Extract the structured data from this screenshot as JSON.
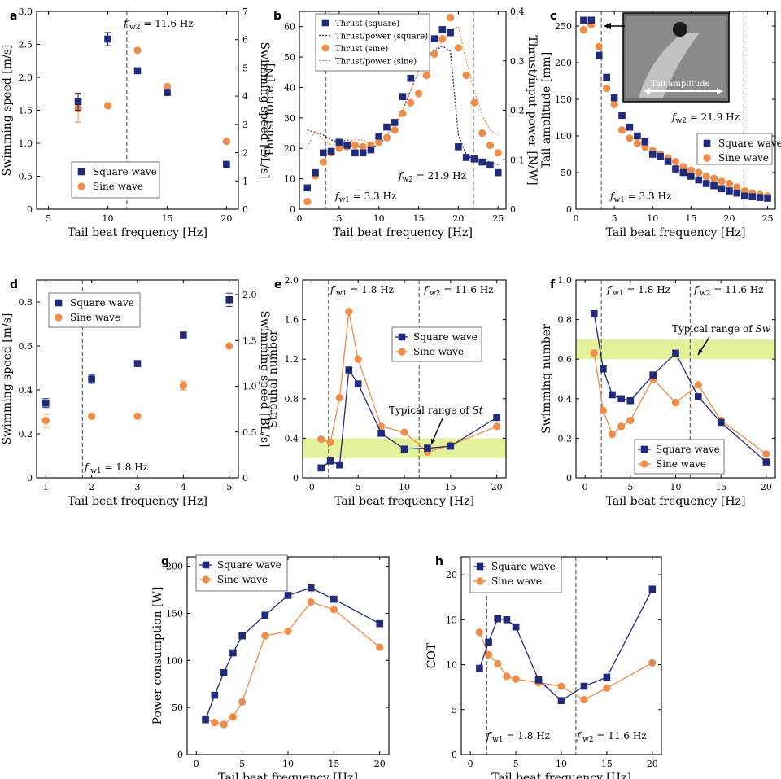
{
  "colors": {
    "square": "#1f2a7a",
    "sine": "#f08c4a",
    "band": "#e3f19a"
  },
  "legend": {
    "square": "Square wave",
    "sine": "Sine wave"
  },
  "photo": {
    "label": "Tail amplitude"
  },
  "chart_data": [
    {
      "id": "a",
      "type": "scatter",
      "panel_label": "a",
      "xlabel": "Tail beat frequency [Hz]",
      "ylabel": "Swimming speed [m/s]",
      "ylabel2": "Swimming speed [BL/s]",
      "xlim": [
        4,
        21
      ],
      "ylim": [
        0,
        3.0
      ],
      "xticks": [
        5,
        10,
        15,
        20
      ],
      "yticks": [
        0,
        0.5,
        1.0,
        1.5,
        2.0,
        2.5,
        3.0
      ],
      "yticklabels": [
        "0",
        "0.5",
        "1.0",
        "1.5",
        "2.0",
        "2.5",
        "3.0"
      ],
      "y2lim": [
        0,
        7
      ],
      "y2ticks": [
        0,
        1,
        2,
        3,
        4,
        5,
        6,
        7
      ],
      "y2ticklabels": [
        "0",
        "1",
        "2",
        "3",
        "4",
        "5",
        "6",
        "7"
      ],
      "series": [
        {
          "name": "square",
          "x": [
            7.5,
            10,
            12.5,
            15,
            20
          ],
          "y": [
            1.63,
            2.58,
            2.1,
            1.77,
            0.68
          ],
          "err": [
            0.13,
            0.1,
            0.04,
            0.02,
            0.01
          ]
        },
        {
          "name": "sine",
          "x": [
            7.5,
            10,
            12.5,
            15,
            20
          ],
          "y": [
            1.53,
            1.57,
            2.41,
            1.86,
            1.03
          ],
          "err": [
            0.21,
            0,
            0.02,
            0,
            0
          ]
        }
      ],
      "vlines": [
        {
          "x": 11.6,
          "label": "f′w2 = 11.6 Hz"
        }
      ],
      "legend_pos": "lower-left"
    },
    {
      "id": "b",
      "type": "scatter+line",
      "panel_label": "b",
      "xlabel": "Tail beat frequency [Hz]",
      "ylabel": "Thrust force [N]",
      "ylabel2": "Thrust/input power [N/W]",
      "xlim": [
        0,
        26
      ],
      "ylim": [
        0,
        65
      ],
      "xticks": [
        0,
        5,
        10,
        15,
        20,
        25
      ],
      "yticks": [
        0,
        10,
        20,
        30,
        40,
        50,
        60
      ],
      "yticklabels": [
        "0",
        "10",
        "20",
        "30",
        "40",
        "50",
        "60"
      ],
      "y2lim": [
        0,
        0.4
      ],
      "y2ticks": [
        0,
        0.1,
        0.2,
        0.3,
        0.4
      ],
      "y2ticklabels": [
        "0",
        "0.1",
        "0.2",
        "0.3",
        "0.4"
      ],
      "legend_labels": {
        "thrust_square": "Thrust (square)",
        "ratio_square": "Thrust/power (square)",
        "thrust_sine": "Thrust (sine)",
        "ratio_sine": "Thrust/power (sine)"
      },
      "series": [
        {
          "name": "square",
          "x": [
            1,
            2,
            3,
            4,
            5,
            6,
            7,
            8,
            9,
            10,
            11,
            12,
            13,
            14,
            15,
            16,
            17,
            18,
            19,
            20,
            21,
            22,
            23,
            24,
            25
          ],
          "y": [
            7,
            12,
            18.5,
            19,
            22,
            21,
            18.5,
            18.5,
            19.5,
            24,
            27,
            28.5,
            37,
            43,
            47.5,
            55,
            56,
            59,
            58,
            20.5,
            17,
            16.5,
            15.5,
            14.5,
            12
          ]
        },
        {
          "name": "sine",
          "x": [
            1,
            2,
            3,
            4,
            5,
            6,
            7,
            8,
            9,
            10,
            11,
            12,
            13,
            14,
            15,
            16,
            17,
            18,
            19,
            20,
            21,
            22,
            23,
            24,
            25
          ],
          "y": [
            2.5,
            11,
            15.5,
            18.5,
            20,
            20.5,
            21,
            20.5,
            21,
            22,
            23.5,
            26,
            31.5,
            35,
            38,
            44,
            51,
            56,
            63,
            53,
            44,
            35,
            25,
            21,
            18.5
          ]
        },
        {
          "name": "ratio_square",
          "x": [
            1,
            2,
            3,
            4,
            5,
            6,
            7,
            8,
            9,
            10,
            11,
            12,
            13,
            14,
            15,
            16,
            17,
            18,
            19,
            20,
            21,
            22,
            23,
            24,
            25
          ],
          "y": [
            0.16,
            0.155,
            0.15,
            0.14,
            0.135,
            0.14,
            0.13,
            0.125,
            0.125,
            0.13,
            0.15,
            0.17,
            0.2,
            0.24,
            0.28,
            0.31,
            0.32,
            0.33,
            0.32,
            0.15,
            0.11,
            0.1,
            0.1,
            0.095,
            0.09
          ]
        },
        {
          "name": "ratio_sine",
          "x": [
            1,
            2,
            3,
            4,
            5,
            6,
            7,
            8,
            9,
            10,
            11,
            12,
            13,
            14,
            15,
            16,
            17,
            18,
            19,
            20,
            21,
            22,
            23,
            24,
            25
          ],
          "y": [
            0.125,
            0.16,
            0.14,
            0.13,
            0.13,
            0.135,
            0.14,
            0.14,
            0.13,
            0.14,
            0.15,
            0.17,
            0.2,
            0.24,
            0.28,
            0.3,
            0.32,
            0.34,
            0.36,
            0.37,
            0.3,
            0.24,
            0.19,
            0.16,
            0.15
          ]
        }
      ],
      "vlines": [
        {
          "x": 3.3,
          "label": "fw1 = 3.3 Hz"
        },
        {
          "x": 21.9,
          "label": "fw2 = 21.9 Hz"
        }
      ],
      "legend_pos": "top-left"
    },
    {
      "id": "c",
      "type": "scatter",
      "panel_label": "c",
      "xlabel": "Tail beat frequency [Hz]",
      "ylabel": "Tail amplitude [mm]",
      "xlim": [
        0,
        26
      ],
      "ylim": [
        0,
        270
      ],
      "xticks": [
        0,
        5,
        10,
        15,
        20,
        25
      ],
      "yticks": [
        0,
        50,
        100,
        150,
        200,
        250
      ],
      "yticklabels": [
        "0",
        "50",
        "100",
        "150",
        "200",
        "250"
      ],
      "series": [
        {
          "name": "square",
          "x": [
            1,
            2,
            3,
            4,
            5,
            6,
            7,
            8,
            9,
            10,
            11,
            12,
            13,
            14,
            15,
            16,
            17,
            18,
            19,
            20,
            21,
            22,
            23,
            24,
            25
          ],
          "y": [
            258,
            258,
            210,
            180,
            152,
            128,
            112,
            100,
            92,
            75,
            72,
            65,
            55,
            50,
            45,
            40,
            35,
            32,
            28,
            25,
            22,
            18,
            17,
            16,
            15
          ]
        },
        {
          "name": "sine",
          "x": [
            1,
            2,
            3,
            4,
            5,
            6,
            7,
            8,
            9,
            10,
            11,
            12,
            13,
            14,
            15,
            16,
            17,
            18,
            19,
            20,
            21,
            22,
            23,
            24,
            25
          ],
          "y": [
            245,
            252,
            222,
            165,
            143,
            108,
            97,
            90,
            85,
            80,
            75,
            70,
            65,
            58,
            53,
            50,
            45,
            42,
            38,
            35,
            30,
            25,
            22,
            20,
            18
          ]
        }
      ],
      "vlines": [
        {
          "x": 3.3,
          "label": "fw1 = 3.3 Hz"
        },
        {
          "x": 21.9,
          "label": "fw2 = 21.9 Hz"
        }
      ],
      "legend_pos": "right"
    },
    {
      "id": "d",
      "type": "scatter",
      "panel_label": "d",
      "xlabel": "Tail beat frequency [Hz]",
      "ylabel": "Swimming speed [m/s]",
      "ylabel2": "Swimming speed [BL/s]",
      "xlim": [
        0.8,
        5.2
      ],
      "ylim": [
        0,
        0.9
      ],
      "xticks": [
        1,
        2,
        3,
        4,
        5
      ],
      "yticks": [
        0,
        0.2,
        0.4,
        0.6,
        0.8
      ],
      "yticklabels": [
        "0",
        "0.2",
        "0.4",
        "0.6",
        "0.8"
      ],
      "y2lim": [
        0,
        2.16
      ],
      "y2ticks": [
        0,
        0.5,
        1.0,
        1.5,
        2.0
      ],
      "y2ticklabels": [
        "0",
        "0.5",
        "1.0",
        "1.5",
        "2.0"
      ],
      "series": [
        {
          "name": "square",
          "x": [
            1,
            2,
            3,
            4,
            5
          ],
          "y": [
            0.34,
            0.45,
            0.52,
            0.65,
            0.81
          ],
          "err": [
            0.02,
            0.02,
            0,
            0,
            0.03
          ]
        },
        {
          "name": "sine",
          "x": [
            1,
            2,
            3,
            4,
            5
          ],
          "y": [
            0.26,
            0.28,
            0.28,
            0.42,
            0.6
          ],
          "err": [
            0.03,
            0,
            0,
            0.02,
            0
          ]
        }
      ],
      "vlines": [
        {
          "x": 1.8,
          "label": "f′w1 = 1.8 Hz"
        }
      ],
      "legend_pos": "top-left"
    },
    {
      "id": "e",
      "type": "line",
      "panel_label": "e",
      "xlabel": "Tail beat frequency [Hz]",
      "ylabel": "Strouhal number",
      "xlim": [
        -1,
        21
      ],
      "ylim": [
        0,
        2.0
      ],
      "xticks": [
        0,
        5,
        10,
        15,
        20
      ],
      "yticks": [
        0,
        0.4,
        0.8,
        1.2,
        1.6,
        2.0
      ],
      "yticklabels": [
        "0",
        "0.4",
        "0.8",
        "1.2",
        "1.6",
        "2.0"
      ],
      "band": [
        0.2,
        0.4
      ],
      "band_label": "Typical range of St",
      "series": [
        {
          "name": "square",
          "x": [
            1,
            2,
            3,
            4,
            5,
            7.5,
            10,
            12.5,
            15,
            20
          ],
          "y": [
            0.1,
            0.17,
            0.13,
            1.09,
            0.95,
            0.45,
            0.29,
            0.3,
            0.32,
            0.61
          ]
        },
        {
          "name": "sine",
          "x": [
            1,
            2,
            3,
            4,
            5,
            7.5,
            10,
            12.5,
            15,
            20
          ],
          "y": [
            0.39,
            0.36,
            0.81,
            1.68,
            1.2,
            0.52,
            0.46,
            0.26,
            0.33,
            0.52
          ]
        }
      ],
      "vlines": [
        {
          "x": 1.8,
          "label": "f′w1 = 1.8 Hz"
        },
        {
          "x": 11.6,
          "label": "f′w2 = 11.6 Hz"
        }
      ],
      "legend_pos": "top-right"
    },
    {
      "id": "f",
      "type": "line",
      "panel_label": "f",
      "xlabel": "Tail beat frequency [Hz]",
      "ylabel": "Swimming number",
      "xlim": [
        -1,
        21
      ],
      "ylim": [
        0,
        1.0
      ],
      "xticks": [
        0,
        5,
        10,
        15,
        20
      ],
      "yticks": [
        0,
        0.2,
        0.4,
        0.6,
        0.8,
        1.0
      ],
      "yticklabels": [
        "0",
        "0.2",
        "0.4",
        "0.6",
        "0.8",
        "1.0"
      ],
      "band": [
        0.6,
        0.7
      ],
      "band_label": "Typical range of Sw",
      "series": [
        {
          "name": "square",
          "x": [
            1,
            2,
            3,
            4,
            5,
            7.5,
            10,
            12.5,
            15,
            20
          ],
          "y": [
            0.83,
            0.55,
            0.42,
            0.4,
            0.39,
            0.52,
            0.63,
            0.41,
            0.28,
            0.08
          ]
        },
        {
          "name": "sine",
          "x": [
            1,
            2,
            3,
            4,
            5,
            7.5,
            10,
            12.5,
            15,
            20
          ],
          "y": [
            0.63,
            0.34,
            0.22,
            0.26,
            0.29,
            0.5,
            0.38,
            0.47,
            0.29,
            0.12
          ]
        }
      ],
      "vlines": [
        {
          "x": 1.8,
          "label": "f′w1 = 1.8 Hz"
        },
        {
          "x": 11.6,
          "label": "f′w2 = 11.6 Hz"
        }
      ],
      "legend_pos": "bottom-right"
    },
    {
      "id": "g",
      "type": "line",
      "panel_label": "g",
      "xlabel": "Tail beat frequency [Hz]",
      "ylabel": "Power consumption [W]",
      "xlim": [
        -1,
        21
      ],
      "ylim": [
        0,
        210
      ],
      "xticks": [
        0,
        5,
        10,
        15,
        20
      ],
      "yticks": [
        0,
        50,
        100,
        150,
        200
      ],
      "yticklabels": [
        "0",
        "50",
        "100",
        "150",
        "200"
      ],
      "series": [
        {
          "name": "square",
          "x": [
            1,
            2,
            3,
            4,
            5,
            7.5,
            10,
            12.5,
            15,
            20
          ],
          "y": [
            37,
            63,
            87,
            108,
            126,
            148,
            169,
            177,
            165,
            139
          ]
        },
        {
          "name": "sine",
          "x": [
            1,
            2,
            3,
            4,
            5,
            7.5,
            10,
            12.5,
            15,
            20
          ],
          "y": [
            38,
            34,
            32,
            40,
            56,
            126,
            131,
            162,
            154,
            114
          ]
        }
      ],
      "vlines": [],
      "legend_pos": "top-left"
    },
    {
      "id": "h",
      "type": "line",
      "panel_label": "h",
      "xlabel": "Tail beat frequency [Hz]",
      "ylabel": "COT",
      "xlim": [
        -1,
        21
      ],
      "ylim": [
        0,
        22
      ],
      "xticks": [
        0,
        5,
        10,
        15,
        20
      ],
      "yticks": [
        0,
        5,
        10,
        15,
        20
      ],
      "yticklabels": [
        "0",
        "5",
        "10",
        "15",
        "20"
      ],
      "series": [
        {
          "name": "square",
          "x": [
            1,
            2,
            3,
            4,
            5,
            7.5,
            10,
            12.5,
            15,
            20
          ],
          "y": [
            9.6,
            12.5,
            15.1,
            15.0,
            14.2,
            8.3,
            6.0,
            7.6,
            8.6,
            18.4
          ]
        },
        {
          "name": "sine",
          "x": [
            1,
            2,
            3,
            4,
            5,
            7.5,
            10,
            12.5,
            15,
            20
          ],
          "y": [
            13.6,
            11.1,
            10.1,
            8.7,
            8.4,
            8.0,
            7.6,
            6.1,
            7.4,
            10.2
          ]
        }
      ],
      "vlines": [
        {
          "x": 1.8,
          "label": "f′w1 = 1.8 Hz"
        },
        {
          "x": 11.6,
          "label": "f′w2 = 11.6 Hz"
        }
      ],
      "legend_pos": "top-left"
    }
  ]
}
